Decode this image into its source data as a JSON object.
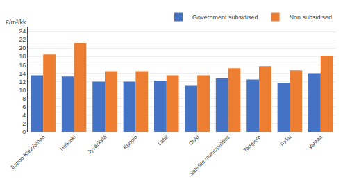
{
  "chart_data": {
    "type": "bar",
    "ylabel": "€/m²/kk",
    "categories": [
      "Espoo-Kauniainen",
      "Helsinki",
      "Jyväskylä",
      "Kuopio",
      "Lahti",
      "Oulu",
      "Satellite municipalities",
      "Tampere",
      "Turku",
      "Vantaa"
    ],
    "series": [
      {
        "name": "Government subsidised",
        "color": "#4472C4",
        "values": [
          13.5,
          13.2,
          12.0,
          12.0,
          12.2,
          11.0,
          12.8,
          12.5,
          11.7,
          14.0
        ]
      },
      {
        "name": "Non subsidised",
        "color": "#ED7D31",
        "values": [
          18.5,
          21.2,
          14.5,
          14.5,
          13.5,
          13.5,
          15.2,
          15.7,
          14.7,
          18.2
        ]
      }
    ],
    "ylim": [
      0,
      25
    ],
    "yticks": [
      0,
      2,
      4,
      6,
      8,
      10,
      12,
      14,
      16,
      18,
      20,
      22,
      24
    ],
    "grid": true,
    "legend": "upper right"
  }
}
